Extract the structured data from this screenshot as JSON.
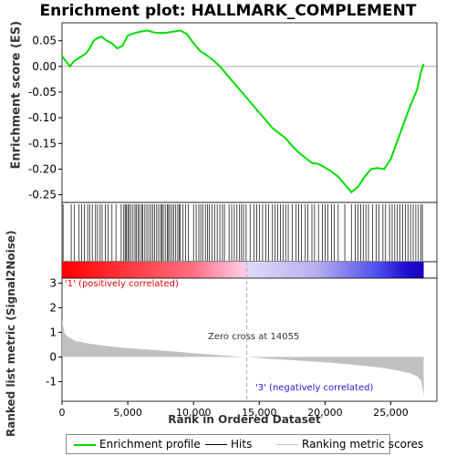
{
  "chart_data": [
    {
      "type": "line",
      "title": "Enrichment plot: HALLMARK_COMPLEMENT",
      "ylabel": "Enrichment score (ES)",
      "ylim": [
        -0.265,
        0.085
      ],
      "yticks": [
        0.05,
        0.0,
        -0.05,
        -0.1,
        -0.15,
        -0.2,
        -0.25
      ],
      "ytick_labels": [
        "0.05",
        "0.00",
        "-0.05",
        "-0.10",
        "-0.15",
        "-0.20",
        "-0.25"
      ],
      "xlim": [
        0,
        28500
      ],
      "series": [
        {
          "name": "Enrichment profile",
          "color": "#00dd00",
          "x": [
            0,
            300,
            600,
            900,
            1200,
            1500,
            1800,
            2100,
            2400,
            2700,
            3000,
            3400,
            3800,
            4200,
            4600,
            5000,
            5500,
            6000,
            6500,
            7000,
            7500,
            8000,
            8500,
            9000,
            9500,
            10000,
            10500,
            11000,
            11500,
            12000,
            12500,
            13000,
            13500,
            14000,
            14500,
            15000,
            15500,
            16000,
            16500,
            17000,
            17500,
            18000,
            18500,
            19000,
            19500,
            20000,
            20500,
            21000,
            21500,
            22000,
            22500,
            23000,
            23500,
            24000,
            24500,
            25000,
            25500,
            26000,
            26500,
            27000,
            27300,
            27500
          ],
          "y": [
            0.02,
            0.01,
            0.0,
            0.01,
            0.015,
            0.02,
            0.025,
            0.035,
            0.05,
            0.055,
            0.058,
            0.05,
            0.045,
            0.035,
            0.04,
            0.06,
            0.065,
            0.068,
            0.07,
            0.066,
            0.065,
            0.066,
            0.068,
            0.07,
            0.063,
            0.045,
            0.03,
            0.022,
            0.012,
            0.0,
            -0.015,
            -0.03,
            -0.045,
            -0.06,
            -0.075,
            -0.09,
            -0.105,
            -0.12,
            -0.13,
            -0.14,
            -0.155,
            -0.168,
            -0.178,
            -0.188,
            -0.19,
            -0.197,
            -0.205,
            -0.215,
            -0.23,
            -0.245,
            -0.235,
            -0.215,
            -0.2,
            -0.198,
            -0.2,
            -0.18,
            -0.145,
            -0.11,
            -0.075,
            -0.045,
            -0.01,
            0.005
          ]
        }
      ]
    },
    {
      "type": "hits",
      "series": [
        {
          "name": "Hits",
          "color": "#000000",
          "x": [
            80,
            700,
            950,
            1300,
            1500,
            1700,
            1950,
            2100,
            2300,
            2550,
            2700,
            2900,
            3050,
            3300,
            3500,
            3800,
            4100,
            4500,
            4700,
            4800,
            4900,
            5000,
            5100,
            5250,
            5400,
            5550,
            5650,
            5800,
            5900,
            6050,
            6150,
            6300,
            6450,
            6600,
            6750,
            6900,
            7050,
            7200,
            7350,
            7500,
            7600,
            7700,
            7850,
            8000,
            8100,
            8200,
            8350,
            8500,
            8650,
            8800,
            8900,
            9000,
            9200,
            9400,
            9600,
            10000,
            10200,
            10400,
            10550,
            10700,
            10900,
            11050,
            11200,
            11400,
            11600,
            11800,
            12000,
            12200,
            12350,
            12700,
            12900,
            13100,
            13300,
            13500,
            13650,
            13800,
            14000,
            14300,
            14600,
            14800,
            15000,
            15250,
            15500,
            15700,
            16000,
            16200,
            16400,
            16600,
            16800,
            17000,
            17200,
            17500,
            17800,
            18000,
            18200,
            18500,
            18700,
            19000,
            19200,
            19500,
            19800,
            20000,
            20200,
            20500,
            20700,
            21000,
            21500,
            22000,
            22300,
            22500,
            22700,
            22900,
            23100,
            23300,
            23600,
            23900,
            24100,
            24400,
            24600,
            24900,
            25100,
            25300,
            25500,
            25700,
            25900,
            26100,
            26300,
            26500,
            26700,
            26900,
            27100,
            27300,
            27400
          ]
        },
        {
          "name": "Ranking metric scores",
          "color": "#c0c0c0",
          "x": [
            0,
            200,
            500,
            1000,
            2000,
            3000,
            4000,
            5000,
            6000,
            7000,
            8000,
            9000,
            10000,
            11000,
            12000,
            13000,
            14055,
            15000,
            16000,
            17000,
            18000,
            19000,
            20000,
            21000,
            22000,
            23000,
            24000,
            25000,
            25800,
            26500,
            27000,
            27300,
            27500
          ],
          "y": [
            1.5,
            0.95,
            0.8,
            0.66,
            0.54,
            0.47,
            0.41,
            0.36,
            0.32,
            0.28,
            0.24,
            0.2,
            0.15,
            0.11,
            0.07,
            0.03,
            0.0,
            -0.04,
            -0.08,
            -0.11,
            -0.15,
            -0.18,
            -0.22,
            -0.26,
            -0.31,
            -0.36,
            -0.42,
            -0.5,
            -0.58,
            -0.67,
            -0.78,
            -0.95,
            -1.6
          ]
        }
      ]
    },
    {
      "type": "area",
      "xlabel": "Rank in Ordered Dataset",
      "ylabel": "Ranked list metric (Signal2Noise)",
      "ylim": [
        -1.8,
        3.2
      ],
      "yticks": [
        3,
        2,
        1,
        0,
        -1
      ],
      "ytick_labels": [
        "3",
        "2",
        "1",
        "0",
        "-1"
      ],
      "xticks": [
        0,
        5000,
        10000,
        15000,
        20000,
        25000
      ],
      "xtick_labels": [
        "0",
        "5,000",
        "10,000",
        "15,000",
        "20,000",
        "25,000"
      ],
      "annotations": {
        "zero_cross": "Zero cross at 14055",
        "positive": "'1' (positively correlated)",
        "negative": "'3' (negatively correlated)"
      },
      "zero_cross_x": 14055
    }
  ],
  "legend": {
    "items": [
      {
        "label": "Enrichment profile",
        "color": "#00dd00"
      },
      {
        "label": "Hits",
        "color": "#000000"
      },
      {
        "label": "Ranking metric scores",
        "color": "#c0c0c0"
      }
    ]
  }
}
